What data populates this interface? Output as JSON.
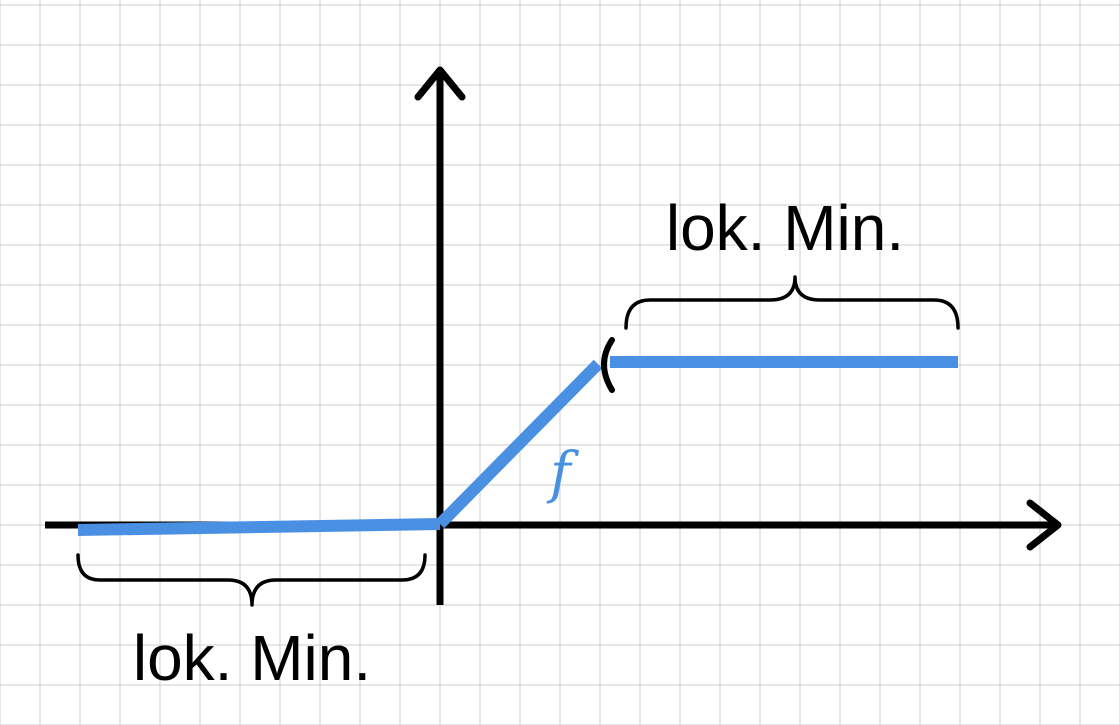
{
  "labels": {
    "min_right": "lok. Min.",
    "min_left": "lok. Min.",
    "function": "f"
  },
  "colors": {
    "function": "#4a90e2",
    "axis": "#000000",
    "grid": "#cccccc",
    "background": "#ffffff"
  }
}
